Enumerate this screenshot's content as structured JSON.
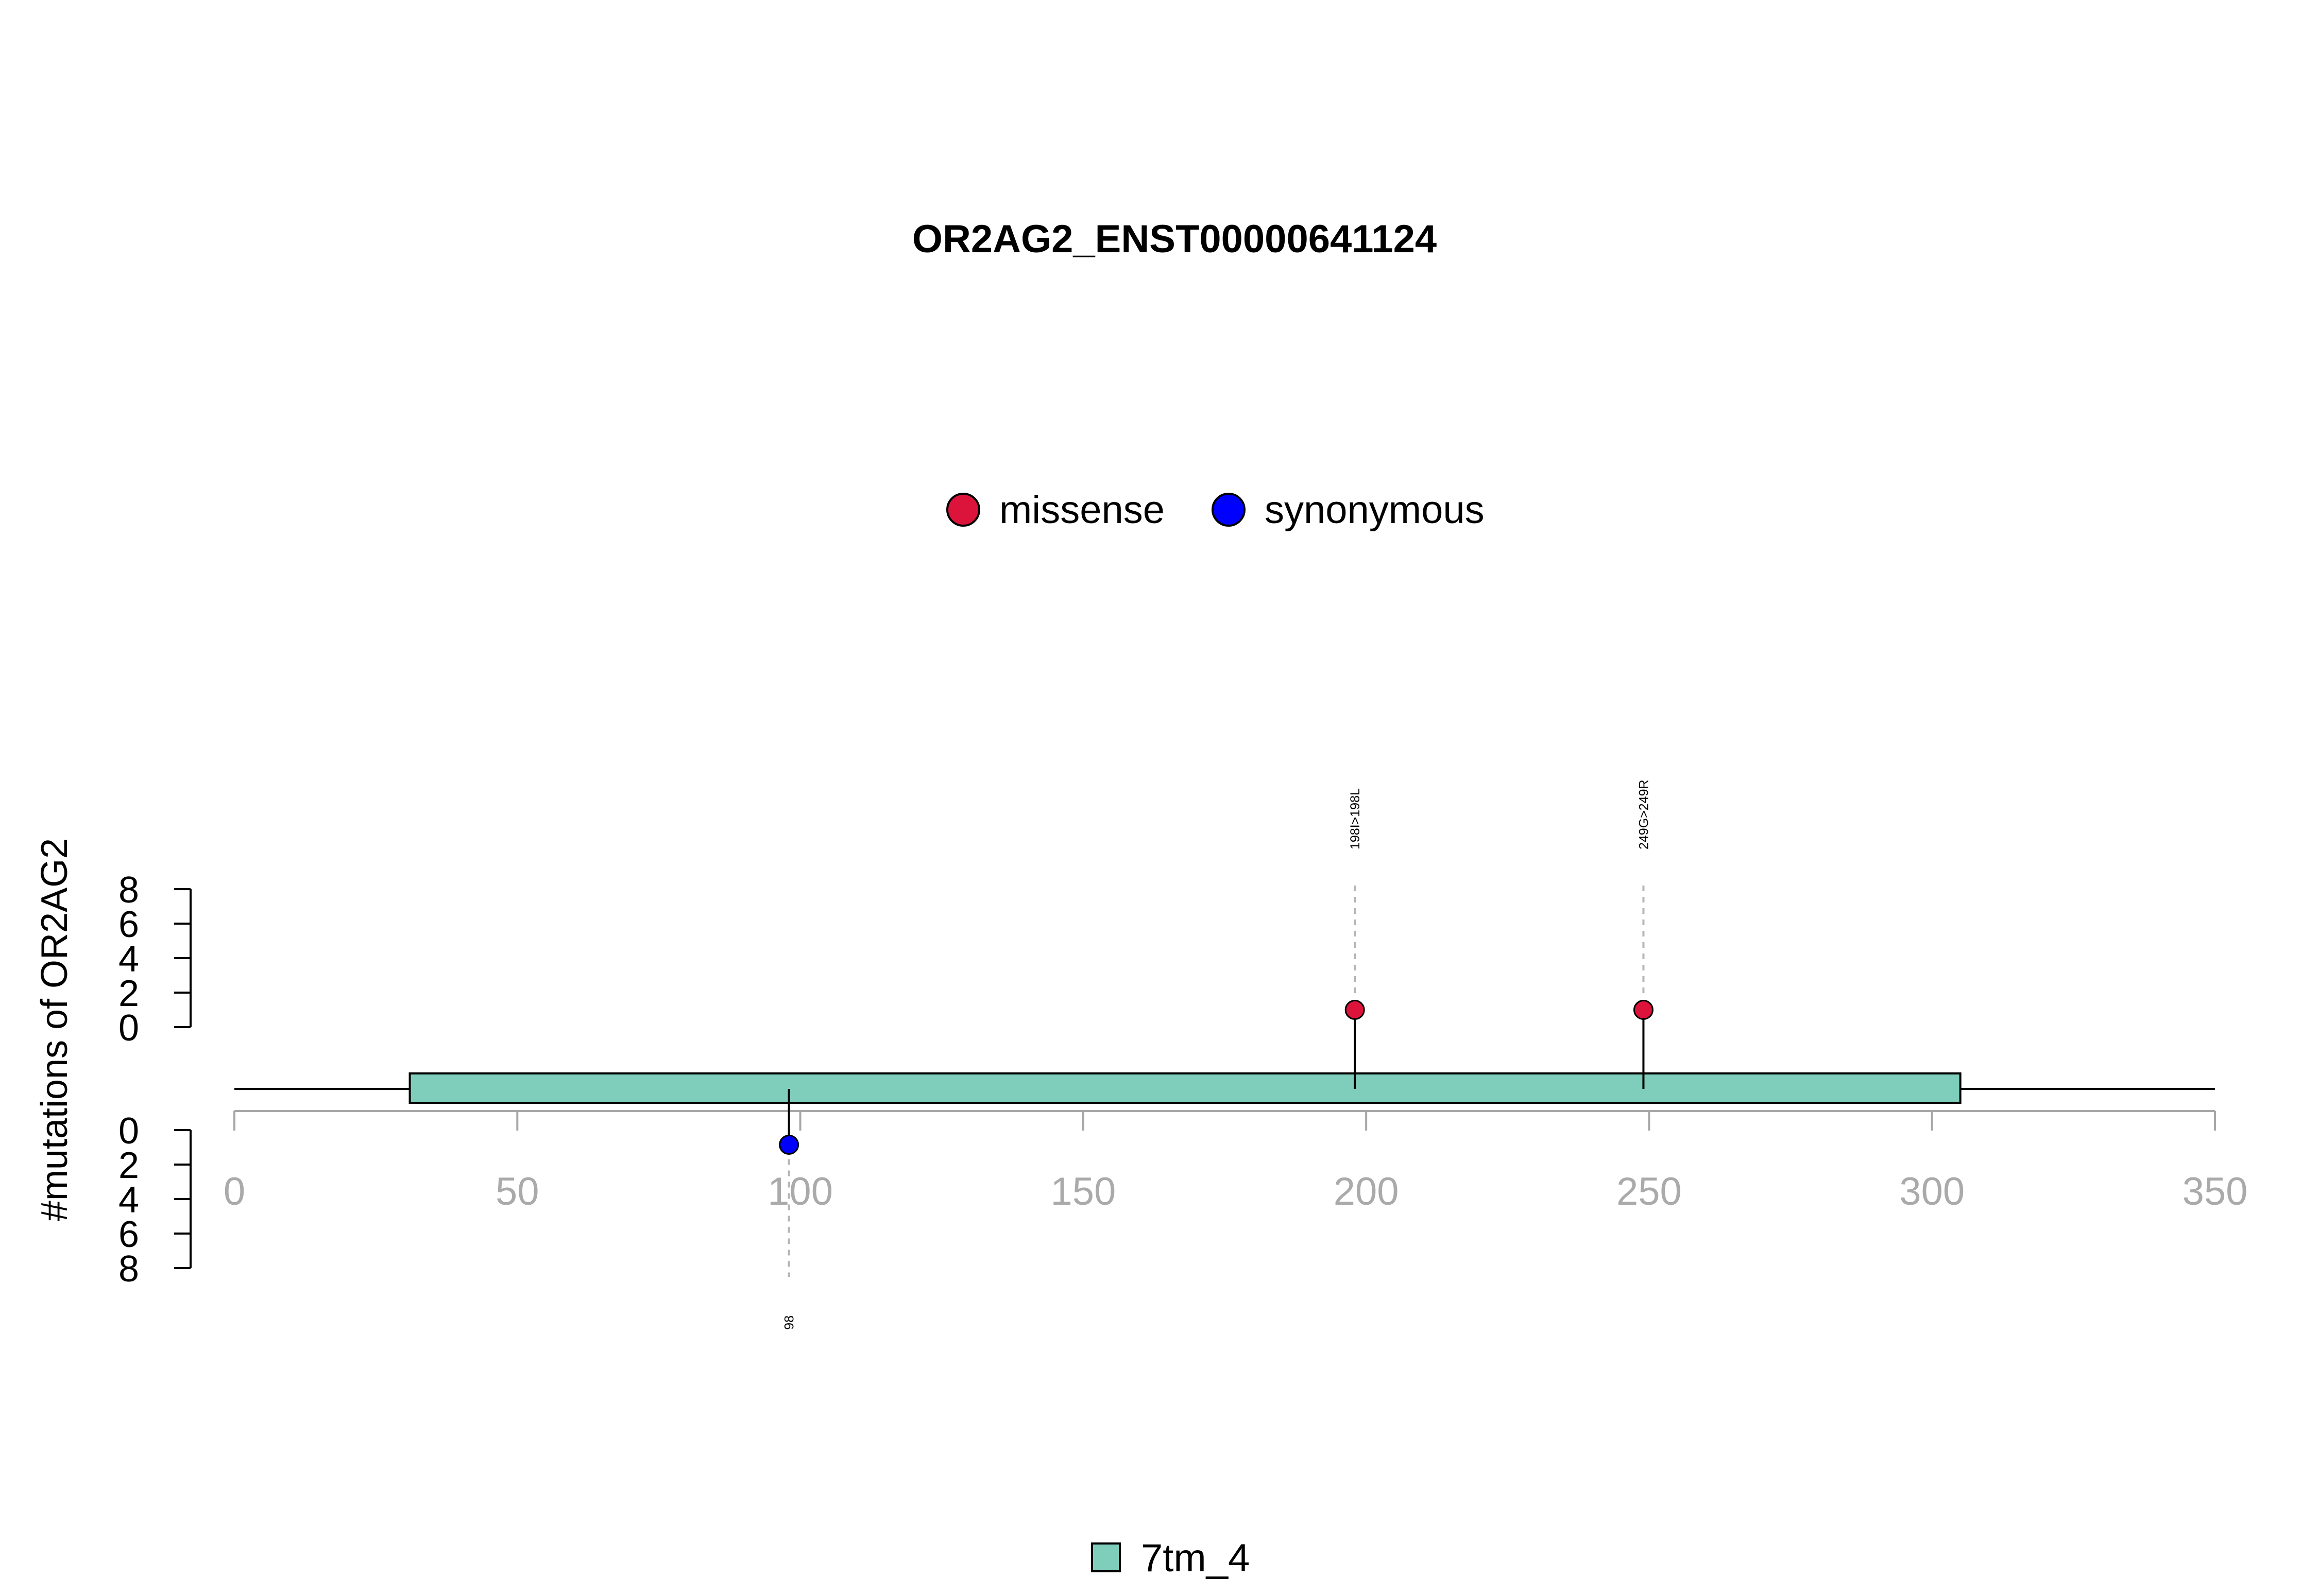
{
  "chart_data": {
    "type": "lollipop",
    "title": "OR2AG2_ENST00000641124",
    "ylabel": "#mutations of OR2AG2",
    "xlim": [
      0,
      350
    ],
    "x_ticks": [
      0,
      50,
      100,
      150,
      200,
      250,
      300,
      350
    ],
    "upper_y_ticks": [
      0,
      2,
      4,
      6,
      8
    ],
    "lower_y_ticks": [
      0,
      2,
      4,
      6,
      8
    ],
    "protein_length": 350,
    "legend_mutations": [
      {
        "label": "missense",
        "color": "#dc143c"
      },
      {
        "label": "synonymous",
        "color": "#0000ff"
      }
    ],
    "mutations": [
      {
        "position": 198,
        "count": 1,
        "type": "missense",
        "label": "198I>198L",
        "side": "top"
      },
      {
        "position": 249,
        "count": 1,
        "type": "missense",
        "label": "249G>249R",
        "side": "top"
      },
      {
        "position": 98,
        "count": 1,
        "type": "synonymous",
        "label": "98",
        "side": "bottom"
      }
    ],
    "domains": [
      {
        "name": "7tm_4",
        "start": 31,
        "end": 305,
        "color": "#7fcdbb"
      }
    ],
    "legend_domains": [
      {
        "label": "7tm_4",
        "color": "#7fcdbb"
      }
    ]
  }
}
